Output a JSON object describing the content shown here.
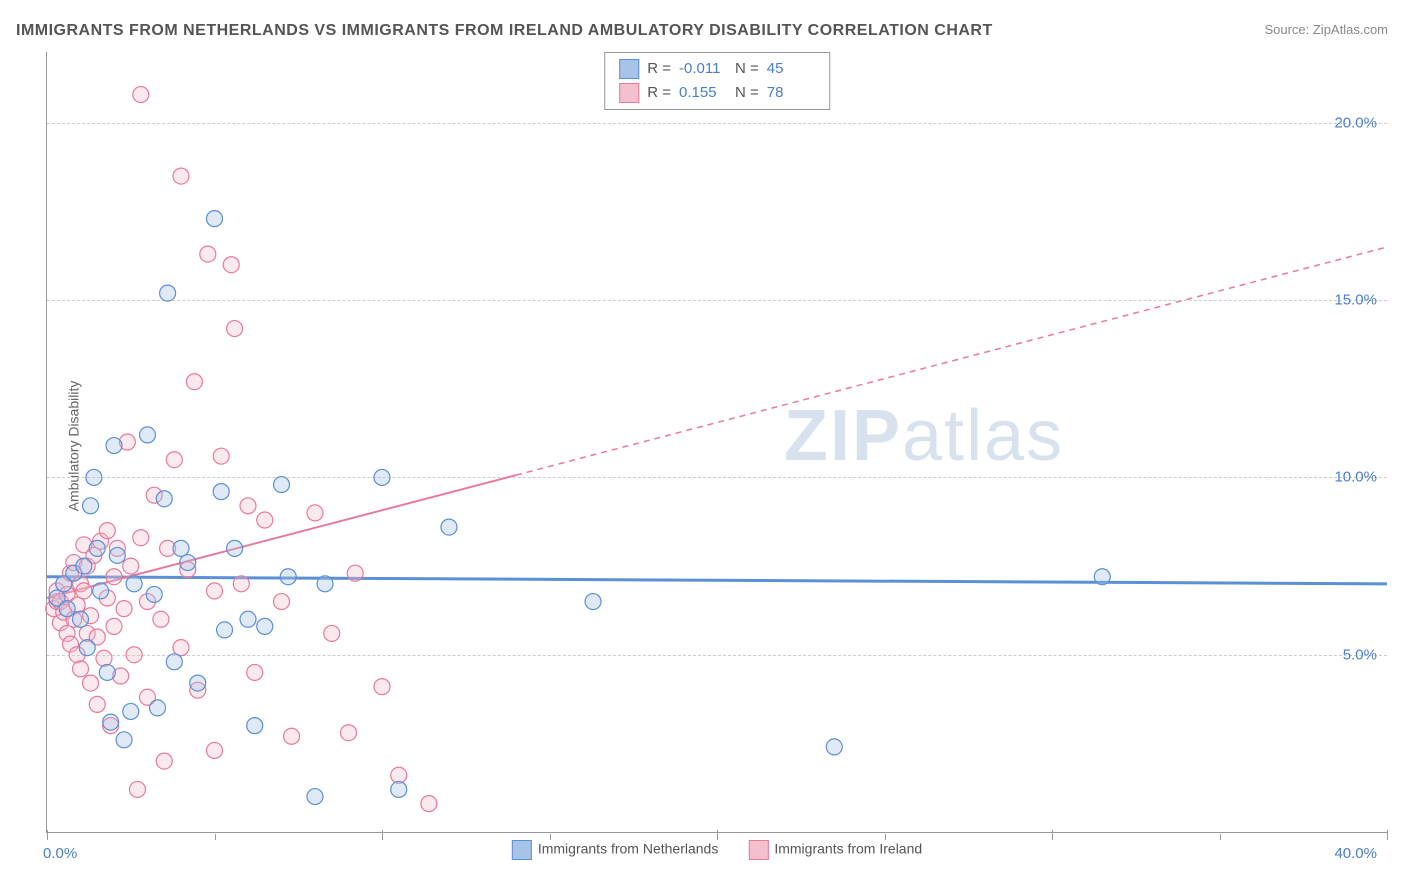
{
  "title": "IMMIGRANTS FROM NETHERLANDS VS IMMIGRANTS FROM IRELAND AMBULATORY DISABILITY CORRELATION CHART",
  "source": "Source: ZipAtlas.com",
  "y_axis_label": "Ambulatory Disability",
  "watermark_a": "ZIP",
  "watermark_b": "atlas",
  "chart": {
    "type": "scatter",
    "xlim": [
      0,
      40
    ],
    "ylim": [
      0,
      22
    ],
    "x_ticks_major": [
      0,
      10,
      20,
      30,
      40
    ],
    "x_ticks_minor": [
      5,
      15,
      25,
      35
    ],
    "x_tick_label_left": "0.0%",
    "x_tick_label_right": "40.0%",
    "y_gridlines": [
      {
        "value": 5,
        "label": "5.0%"
      },
      {
        "value": 10,
        "label": "10.0%"
      },
      {
        "value": 15,
        "label": "15.0%"
      },
      {
        "value": 20,
        "label": "20.0%"
      }
    ],
    "background_color": "#ffffff",
    "grid_color": "#cccccc",
    "axis_color": "#999999",
    "tick_label_color": "#4a7ec9",
    "marker_radius": 8,
    "marker_fill_opacity": 0.35,
    "marker_stroke_width": 1.2
  },
  "series": [
    {
      "name": "Immigrants from Netherlands",
      "color_fill": "#a7c3e8",
      "color_stroke": "#5b8fd6",
      "trend": {
        "x1": 0,
        "y1": 7.2,
        "x2": 40,
        "y2": 7.0,
        "solid_until": 40,
        "stroke_width": 3
      },
      "stats": {
        "R": "-0.011",
        "N": "45"
      },
      "points": [
        [
          0.3,
          6.6
        ],
        [
          0.5,
          7.0
        ],
        [
          0.6,
          6.3
        ],
        [
          0.8,
          7.3
        ],
        [
          1.0,
          6.0
        ],
        [
          1.1,
          7.5
        ],
        [
          1.2,
          5.2
        ],
        [
          1.3,
          9.2
        ],
        [
          1.4,
          10.0
        ],
        [
          1.5,
          8.0
        ],
        [
          1.6,
          6.8
        ],
        [
          1.8,
          4.5
        ],
        [
          1.9,
          3.1
        ],
        [
          2.0,
          10.9
        ],
        [
          2.1,
          7.8
        ],
        [
          2.3,
          2.6
        ],
        [
          2.5,
          3.4
        ],
        [
          2.6,
          7.0
        ],
        [
          3.0,
          11.2
        ],
        [
          3.2,
          6.7
        ],
        [
          3.3,
          3.5
        ],
        [
          3.5,
          9.4
        ],
        [
          3.6,
          15.2
        ],
        [
          3.8,
          4.8
        ],
        [
          4.0,
          8.0
        ],
        [
          4.2,
          7.6
        ],
        [
          4.5,
          4.2
        ],
        [
          5.0,
          17.3
        ],
        [
          5.2,
          9.6
        ],
        [
          5.3,
          5.7
        ],
        [
          5.6,
          8.0
        ],
        [
          6.0,
          6.0
        ],
        [
          6.2,
          3.0
        ],
        [
          6.5,
          5.8
        ],
        [
          7.0,
          9.8
        ],
        [
          7.2,
          7.2
        ],
        [
          8.0,
          1.0
        ],
        [
          8.3,
          7.0
        ],
        [
          10.0,
          10.0
        ],
        [
          10.5,
          1.2
        ],
        [
          12.0,
          8.6
        ],
        [
          16.3,
          6.5
        ],
        [
          23.5,
          2.4
        ],
        [
          31.5,
          7.2
        ]
      ]
    },
    {
      "name": "Immigrants from Ireland",
      "color_fill": "#f4c0cd",
      "color_stroke": "#e87a9a",
      "trend": {
        "x1": 0,
        "y1": 6.6,
        "x2": 40,
        "y2": 16.5,
        "solid_until": 14,
        "stroke_width": 2
      },
      "stats": {
        "R": "0.155",
        "N": "78"
      },
      "points": [
        [
          0.2,
          6.3
        ],
        [
          0.3,
          6.5
        ],
        [
          0.3,
          6.8
        ],
        [
          0.4,
          5.9
        ],
        [
          0.4,
          6.5
        ],
        [
          0.5,
          6.2
        ],
        [
          0.5,
          7.0
        ],
        [
          0.6,
          5.6
        ],
        [
          0.6,
          6.7
        ],
        [
          0.7,
          5.3
        ],
        [
          0.7,
          7.3
        ],
        [
          0.8,
          6.0
        ],
        [
          0.8,
          7.6
        ],
        [
          0.9,
          5.0
        ],
        [
          0.9,
          6.4
        ],
        [
          1.0,
          4.6
        ],
        [
          1.0,
          7.0
        ],
        [
          1.1,
          6.8
        ],
        [
          1.1,
          8.1
        ],
        [
          1.2,
          5.6
        ],
        [
          1.2,
          7.5
        ],
        [
          1.3,
          4.2
        ],
        [
          1.3,
          6.1
        ],
        [
          1.4,
          7.8
        ],
        [
          1.5,
          3.6
        ],
        [
          1.5,
          5.5
        ],
        [
          1.6,
          8.2
        ],
        [
          1.7,
          4.9
        ],
        [
          1.8,
          6.6
        ],
        [
          1.8,
          8.5
        ],
        [
          1.9,
          3.0
        ],
        [
          2.0,
          5.8
        ],
        [
          2.0,
          7.2
        ],
        [
          2.1,
          8.0
        ],
        [
          2.2,
          4.4
        ],
        [
          2.3,
          6.3
        ],
        [
          2.4,
          11.0
        ],
        [
          2.5,
          7.5
        ],
        [
          2.6,
          5.0
        ],
        [
          2.7,
          1.2
        ],
        [
          2.8,
          8.3
        ],
        [
          2.8,
          20.8
        ],
        [
          3.0,
          3.8
        ],
        [
          3.0,
          6.5
        ],
        [
          3.2,
          9.5
        ],
        [
          3.4,
          6.0
        ],
        [
          3.5,
          2.0
        ],
        [
          3.6,
          8.0
        ],
        [
          3.8,
          10.5
        ],
        [
          4.0,
          5.2
        ],
        [
          4.0,
          18.5
        ],
        [
          4.2,
          7.4
        ],
        [
          4.4,
          12.7
        ],
        [
          4.5,
          4.0
        ],
        [
          4.8,
          16.3
        ],
        [
          5.0,
          6.8
        ],
        [
          5.0,
          2.3
        ],
        [
          5.2,
          10.6
        ],
        [
          5.5,
          16.0
        ],
        [
          5.6,
          14.2
        ],
        [
          5.8,
          7.0
        ],
        [
          6.0,
          9.2
        ],
        [
          6.2,
          4.5
        ],
        [
          6.5,
          8.8
        ],
        [
          7.0,
          6.5
        ],
        [
          7.3,
          2.7
        ],
        [
          8.0,
          9.0
        ],
        [
          8.5,
          5.6
        ],
        [
          9.0,
          2.8
        ],
        [
          9.2,
          7.3
        ],
        [
          10.0,
          4.1
        ],
        [
          10.5,
          1.6
        ],
        [
          11.4,
          0.8
        ]
      ]
    }
  ],
  "legend_bottom": [
    {
      "label": "Immigrants from Netherlands",
      "fill": "#a7c3e8",
      "stroke": "#5b8fd6"
    },
    {
      "label": "Immigrants from Ireland",
      "fill": "#f4c0cd",
      "stroke": "#e87a9a"
    }
  ],
  "stats_box_labels": {
    "R": "R =",
    "N": "N ="
  }
}
